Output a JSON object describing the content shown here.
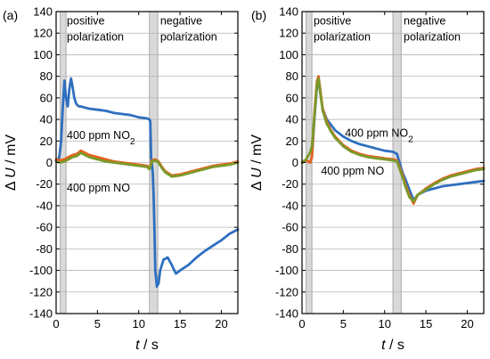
{
  "chart_data": [
    {
      "type": "line",
      "panel_label": "(a)",
      "xlabel_var": "t",
      "xlabel_unit": " / s",
      "ylabel_prefix": "Δ ",
      "ylabel_var": "U",
      "ylabel_unit": " / mV",
      "xlim": [
        0,
        22
      ],
      "ylim": [
        -140,
        140
      ],
      "xticks": [
        0,
        5,
        10,
        15,
        20
      ],
      "yticks": [
        -140,
        -120,
        -100,
        -80,
        -60,
        -40,
        -20,
        0,
        20,
        40,
        60,
        80,
        100,
        120,
        140
      ],
      "grid": "horizontal",
      "shaded_intervals": [
        [
          0.5,
          1.2
        ],
        [
          11.3,
          12.3
        ]
      ],
      "region_labels": [
        {
          "lines": [
            "positive",
            "polarization"
          ],
          "x": 1.3,
          "y": 128
        },
        {
          "lines": [
            "negative",
            "polarization"
          ],
          "x": 12.6,
          "y": 128
        }
      ],
      "annotations": [
        {
          "text": "400 ppm NO",
          "sub": "2",
          "x": 1.3,
          "y": 22
        },
        {
          "text": "400 ppm NO",
          "sub": "",
          "x": 1.3,
          "y": -27
        }
      ],
      "series": [
        {
          "color": "#2e6fc0",
          "x": [
            0,
            0.2,
            0.4,
            0.6,
            0.8,
            1.0,
            1.2,
            1.4,
            1.6,
            1.8,
            2.0,
            2.2,
            2.4,
            2.6,
            2.8,
            3.0,
            3.5,
            4,
            5,
            6,
            7,
            8,
            9,
            10,
            11,
            11.3,
            11.4,
            11.5,
            11.6,
            11.7,
            11.8,
            11.9,
            12.0,
            12.2,
            12.4,
            12.6,
            13.0,
            13.5,
            14,
            14.5,
            15,
            16,
            17,
            18,
            19,
            20,
            21,
            22
          ],
          "y": [
            2,
            1,
            6,
            20,
            50,
            76,
            60,
            52,
            68,
            78,
            70,
            60,
            55,
            53,
            52,
            52,
            51,
            50,
            49,
            48,
            46,
            45,
            44,
            42,
            41,
            40,
            38,
            5,
            -2,
            -10,
            -30,
            -60,
            -100,
            -115,
            -112,
            -100,
            -90,
            -88,
            -95,
            -103,
            -100,
            -95,
            -88,
            -82,
            -77,
            -72,
            -66,
            -62
          ]
        },
        {
          "color": "#e8611c",
          "x": [
            0,
            0.5,
            1,
            1.5,
            2,
            2.5,
            3,
            3.5,
            4,
            5,
            6,
            7,
            8,
            9,
            10,
            11,
            11.3,
            11.6,
            12,
            12.4,
            12.8,
            13.2,
            13.6,
            14,
            15,
            16,
            17,
            18,
            19,
            20,
            21,
            22
          ],
          "y": [
            3,
            2,
            3,
            5,
            7,
            8,
            11,
            9,
            7,
            5,
            3,
            1,
            0,
            -1,
            -2,
            -3,
            -5,
            2,
            3,
            1,
            -4,
            -8,
            -10,
            -12,
            -11,
            -9,
            -7,
            -5,
            -3,
            -2,
            -1,
            1
          ]
        },
        {
          "color": "#7a9a2a",
          "x": [
            0,
            0.5,
            1,
            1.5,
            2,
            2.5,
            3,
            3.5,
            4,
            5,
            6,
            7,
            8,
            9,
            10,
            11,
            11.3,
            11.6,
            12,
            12.4,
            12.8,
            13.2,
            13.6,
            14,
            15,
            16,
            17,
            18,
            19,
            20,
            21,
            22
          ],
          "y": [
            1,
            0,
            1,
            3,
            5,
            6,
            9,
            7,
            5,
            3,
            1,
            0,
            -1,
            -2,
            -3,
            -4,
            -6,
            1,
            2,
            0,
            -5,
            -9,
            -11,
            -13,
            -12,
            -10,
            -8,
            -6,
            -4,
            -3,
            -2,
            0
          ]
        }
      ]
    },
    {
      "type": "line",
      "panel_label": "(b)",
      "xlabel_var": "t",
      "xlabel_unit": " / s",
      "ylabel_prefix": "Δ ",
      "ylabel_var": "U",
      "ylabel_unit": " / mV",
      "xlim": [
        0,
        22
      ],
      "ylim": [
        -140,
        140
      ],
      "xticks": [
        0,
        5,
        10,
        15,
        20
      ],
      "yticks": [
        -140,
        -120,
        -100,
        -80,
        -60,
        -40,
        -20,
        0,
        20,
        40,
        60,
        80,
        100,
        120,
        140
      ],
      "grid": "horizontal",
      "shaded_intervals": [
        [
          0.5,
          1.2
        ],
        [
          11.0,
          12.0
        ]
      ],
      "region_labels": [
        {
          "lines": [
            "positive",
            "polarization"
          ],
          "x": 1.4,
          "y": 128
        },
        {
          "lines": [
            "negative",
            "polarization"
          ],
          "x": 12.3,
          "y": 128
        }
      ],
      "annotations": [
        {
          "text": "400 ppm NO",
          "sub": "2",
          "x": 5.2,
          "y": 24
        },
        {
          "text": "400 ppm NO",
          "sub": "",
          "x": 2.3,
          "y": -11
        }
      ],
      "series": [
        {
          "color": "#2e6fc0",
          "x": [
            0,
            0.5,
            1.0,
            1.2,
            1.5,
            1.8,
            2.0,
            2.2,
            2.5,
            3,
            3.5,
            4,
            5,
            6,
            7,
            8,
            9,
            10,
            11,
            11.5,
            12.0,
            12.2,
            12.5,
            13.0,
            13.5,
            14,
            15,
            16,
            17,
            18,
            19,
            20,
            21,
            22
          ],
          "y": [
            0,
            2,
            0,
            5,
            40,
            70,
            75,
            65,
            50,
            40,
            35,
            30,
            24,
            20,
            17,
            15,
            13,
            11,
            10,
            8,
            -5,
            -10,
            -15,
            -25,
            -35,
            -30,
            -26,
            -24,
            -22,
            -21,
            -20,
            -19,
            -18,
            -17
          ]
        },
        {
          "color": "#e8611c",
          "x": [
            0,
            0.5,
            1.0,
            1.2,
            1.5,
            1.8,
            2.0,
            2.2,
            2.5,
            3,
            3.5,
            4,
            5,
            6,
            7,
            8,
            9,
            10,
            11,
            11.5,
            12.0,
            12.2,
            12.5,
            13.0,
            13.5,
            14,
            15,
            16,
            17,
            18,
            19,
            20,
            21,
            22
          ],
          "y": [
            0,
            2,
            0,
            5,
            45,
            75,
            80,
            68,
            50,
            38,
            30,
            24,
            16,
            11,
            8,
            6,
            5,
            4,
            3,
            2,
            -8,
            -12,
            -20,
            -30,
            -38,
            -30,
            -24,
            -19,
            -15,
            -12,
            -10,
            -8,
            -6,
            -5
          ]
        },
        {
          "color": "#7a9a2a",
          "x": [
            0,
            0.5,
            1.0,
            1.2,
            1.5,
            1.8,
            2.0,
            2.2,
            2.5,
            3,
            3.5,
            4,
            5,
            6,
            7,
            8,
            9,
            10,
            11,
            11.5,
            12.0,
            12.2,
            12.5,
            13.0,
            13.5,
            14,
            15,
            16,
            17,
            18,
            19,
            20,
            21,
            22
          ],
          "y": [
            0,
            3,
            10,
            15,
            42,
            72,
            78,
            66,
            48,
            36,
            29,
            23,
            15,
            10,
            7,
            5,
            4,
            3,
            2,
            1,
            -10,
            -14,
            -22,
            -32,
            -36,
            -30,
            -25,
            -20,
            -16,
            -13,
            -11,
            -9,
            -7,
            -6
          ]
        }
      ]
    }
  ]
}
